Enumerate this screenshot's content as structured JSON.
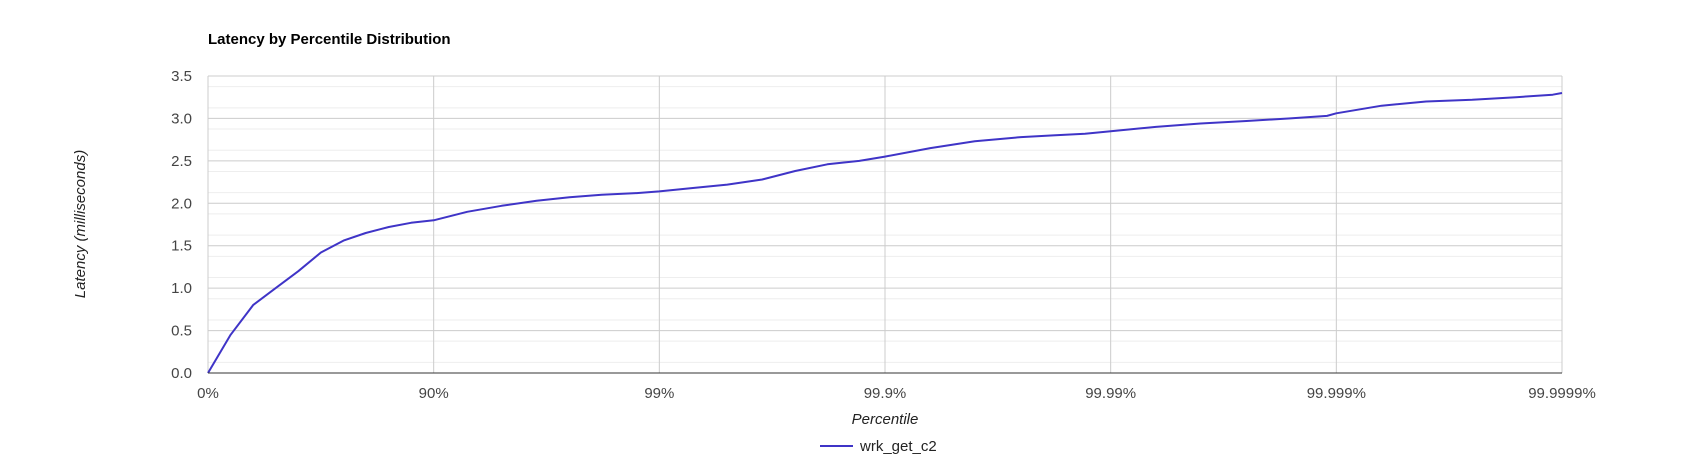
{
  "chart_data": {
    "type": "line",
    "title": "Latency by Percentile Distribution",
    "xlabel": "Percentile",
    "ylabel": "Latency (milliseconds)",
    "x_scale": "log",
    "x_ticks": [
      "0%",
      "90%",
      "99%",
      "99.9%",
      "99.99%",
      "99.999%",
      "99.9999%"
    ],
    "x_tick_values": [
      0,
      90,
      99,
      99.9,
      99.99,
      99.999,
      99.9999
    ],
    "y_ticks": [
      "0.0",
      "0.5",
      "1.0",
      "1.5",
      "2.0",
      "2.5",
      "3.0",
      "3.5"
    ],
    "ylim": [
      0,
      3.5
    ],
    "grid": true,
    "legend_position": "bottom",
    "colors": {
      "series": "#3f34c7",
      "grid_major": "#cccccc",
      "grid_minor": "#eeeeee",
      "axis": "#333333"
    },
    "series": [
      {
        "name": "wrk_get_c2",
        "x": [
          0,
          20.6,
          36.9,
          49.9,
          60.2,
          68.4,
          74.9,
          80.0,
          84.2,
          87.4,
          90.0,
          92.9,
          95.0,
          96.5,
          97.5,
          98.2,
          98.74,
          99.0,
          99.29,
          99.5,
          99.65,
          99.75,
          99.82,
          99.87,
          99.9,
          99.937,
          99.96,
          99.975,
          99.982,
          99.987,
          99.99,
          99.9937,
          99.996,
          99.9975,
          99.9984,
          99.9989,
          99.999,
          99.99937,
          99.9996,
          99.99975,
          99.99984,
          99.99989,
          99.9999
        ],
        "values": [
          0.0,
          0.45,
          0.8,
          1.0,
          1.2,
          1.42,
          1.56,
          1.65,
          1.72,
          1.77,
          1.8,
          1.9,
          1.97,
          2.03,
          2.07,
          2.1,
          2.12,
          2.14,
          2.18,
          2.22,
          2.28,
          2.38,
          2.46,
          2.5,
          2.55,
          2.65,
          2.73,
          2.78,
          2.8,
          2.82,
          2.85,
          2.9,
          2.94,
          2.97,
          3.0,
          3.03,
          3.06,
          3.15,
          3.2,
          3.22,
          3.25,
          3.28,
          3.3
        ]
      }
    ]
  }
}
